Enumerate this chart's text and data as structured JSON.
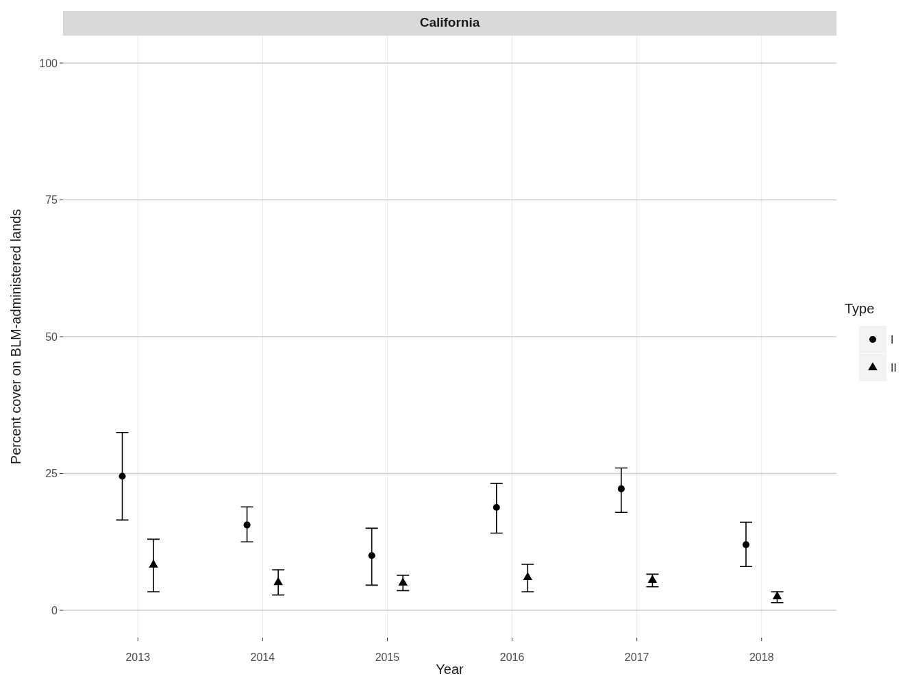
{
  "chart_data": {
    "type": "scatter",
    "title": "California",
    "xlabel": "Year",
    "ylabel": "Percent cover on BLM-administered lands",
    "legend_title": "Type",
    "legend": "right",
    "grid": true,
    "categories": [
      "2013",
      "2014",
      "2015",
      "2016",
      "2017",
      "2018"
    ],
    "ylim": [
      -5,
      105
    ],
    "yticks": [
      0,
      25,
      50,
      75,
      100
    ],
    "series": [
      {
        "name": "I",
        "color": "#000000",
        "marker": "circle",
        "values": [
          24.5,
          15.6,
          10.0,
          18.8,
          22.2,
          12.0
        ],
        "errors": [
          [
            16.5,
            32.5
          ],
          [
            12.5,
            18.9
          ],
          [
            4.6,
            15.0
          ],
          [
            14.1,
            23.2
          ],
          [
            17.9,
            26.0
          ],
          [
            8.0,
            16.1
          ]
        ]
      },
      {
        "name": "II",
        "color": "#000000",
        "marker": "triangle",
        "values": [
          8.3,
          5.1,
          5.0,
          6.0,
          5.5,
          2.5
        ],
        "errors": [
          [
            3.4,
            13.0
          ],
          [
            2.8,
            7.4
          ],
          [
            3.6,
            6.4
          ],
          [
            3.4,
            8.4
          ],
          [
            4.3,
            6.6
          ],
          [
            1.4,
            3.4
          ]
        ]
      }
    ]
  }
}
